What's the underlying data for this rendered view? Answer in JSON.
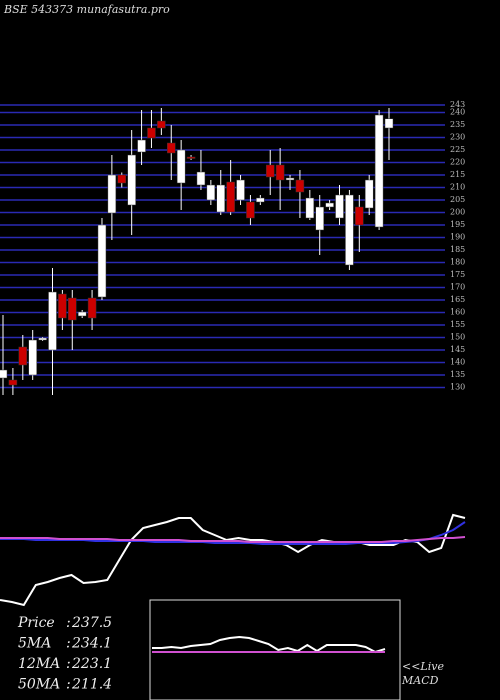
{
  "chart_data": [
    {
      "type": "candlestick",
      "title": "BSE 543373 munafasutra.pro",
      "open": [
        133.8,
        133,
        146.2,
        135,
        149,
        145,
        167.4,
        165.8,
        158.6,
        165.8,
        166.2,
        199.8,
        215,
        203,
        224.2,
        233.8,
        236.6,
        227.8,
        211.8,
        222.2,
        211,
        205,
        200.2,
        212.2,
        205,
        204.2,
        204.2,
        219,
        219,
        213,
        213,
        197.8,
        193,
        202.2,
        197.8,
        179,
        202.2,
        201.8,
        194.2,
        233.8
      ],
      "high": [
        159,
        137.8,
        151,
        153,
        150.2,
        177.8,
        169,
        169,
        161,
        169,
        197.8,
        223,
        216,
        233,
        241,
        241,
        241.8,
        235,
        229,
        223,
        225,
        213,
        217,
        221,
        215,
        207,
        207,
        225,
        225.8,
        215,
        217,
        209,
        207,
        205,
        211,
        209,
        207,
        215,
        241,
        241.8
      ],
      "low": [
        127,
        127,
        133,
        133,
        148.6,
        127,
        153,
        145,
        157.8,
        153,
        165,
        189,
        210,
        191,
        219,
        225.8,
        231,
        213,
        201,
        221,
        209,
        203,
        199,
        199,
        203,
        195,
        203,
        207,
        201,
        209,
        197.8,
        197,
        183,
        201,
        195,
        177,
        184.2,
        199,
        193,
        221
      ],
      "close": [
        137,
        131,
        139,
        149,
        149.8,
        168.2,
        157.8,
        157,
        160.2,
        157.8,
        195,
        215,
        211.8,
        223,
        229,
        229.8,
        233.8,
        223.8,
        225,
        221.8,
        216.2,
        211,
        211,
        200.2,
        213,
        197.8,
        205.8,
        214.2,
        213,
        213.8,
        208.2,
        205.8,
        202.2,
        203.8,
        207,
        207,
        195,
        213,
        239,
        237.5
      ],
      "up_color": "#ffffff",
      "down_color": "#cc0000",
      "grid_color": "#2a2ab4",
      "ylim": [
        127,
        243
      ],
      "yticks": [
        130,
        135,
        140,
        145,
        150,
        155,
        160,
        165,
        170,
        175,
        180,
        185,
        190,
        195,
        200,
        205,
        210,
        215,
        220,
        225,
        230,
        235,
        240,
        243
      ],
      "stats": [
        {
          "label": "Price",
          "value": 237.5
        },
        {
          "label": "5MA",
          "value": 234.1
        },
        {
          "label": "12MA",
          "value": 223.1
        },
        {
          "label": "50MA",
          "value": 211.4
        }
      ]
    },
    {
      "type": "line",
      "ylim": [
        0,
        110
      ],
      "series": [
        {
          "color": "#ffffff",
          "values": [
            10,
            8,
            5,
            25,
            28,
            32,
            35,
            27,
            28,
            30,
            50,
            70,
            82,
            85,
            88,
            92,
            92,
            80,
            75,
            70,
            72,
            70,
            70,
            68,
            65,
            58,
            65,
            70,
            68,
            68,
            68,
            65,
            65,
            65,
            70,
            68,
            58,
            62,
            95,
            92
          ]
        },
        {
          "color": "#3030e0",
          "values": [
            71,
            71,
            71,
            70,
            70,
            70,
            70,
            70,
            69,
            69,
            69,
            69,
            69,
            68,
            68,
            68,
            68,
            68,
            67,
            67,
            67,
            67,
            66,
            66,
            66,
            66,
            66,
            66,
            66,
            66,
            67,
            67,
            67,
            67,
            68,
            69,
            71,
            75,
            80,
            88
          ]
        },
        {
          "color": "#d050d0",
          "values": [
            72,
            72,
            72,
            72,
            72,
            71,
            71,
            71,
            71,
            71,
            70,
            70,
            70,
            70,
            70,
            70,
            69,
            69,
            69,
            69,
            69,
            68,
            68,
            68,
            68,
            68,
            68,
            68,
            68,
            68,
            68,
            68,
            68,
            69,
            69,
            70,
            71,
            72,
            72,
            73
          ]
        }
      ]
    },
    {
      "type": "line",
      "ylim": [
        0,
        100
      ],
      "annotation_lines": [
        "<<Live",
        "MACD"
      ],
      "series": [
        {
          "color": "#ffffff",
          "values": [
            52,
            52,
            53,
            52,
            54,
            55,
            56,
            60,
            62,
            63,
            62,
            59,
            56,
            50,
            52,
            49,
            55,
            49,
            55,
            55,
            55,
            55,
            53,
            48,
            51
          ]
        },
        {
          "color": "#d050d0",
          "values": [
            48,
            48,
            48,
            48,
            48,
            48,
            48,
            48,
            48,
            48,
            48,
            48,
            48,
            48,
            48,
            48,
            48,
            48,
            48,
            48,
            48,
            48,
            48,
            48,
            48
          ]
        }
      ]
    }
  ]
}
